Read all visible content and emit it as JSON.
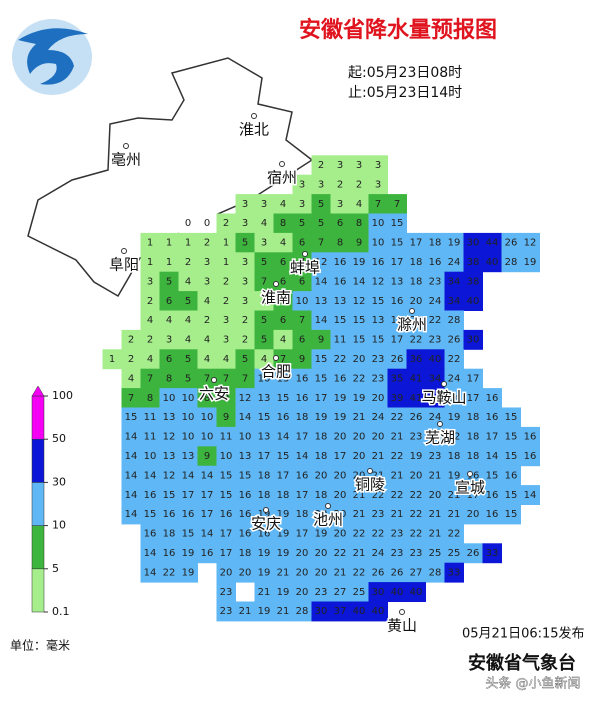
{
  "header": {
    "title": "安徽省降水量预报图",
    "start": "起:05月23日08时",
    "end": "止:05月23日14时"
  },
  "grid": {
    "rows": [
      [
        null,
        null,
        null,
        null,
        null,
        null,
        null,
        null,
        null,
        null,
        null,
        2,
        3,
        3,
        3,
        null,
        null,
        null,
        null,
        null,
        null,
        null,
        null,
        null
      ],
      [
        null,
        null,
        null,
        null,
        null,
        null,
        null,
        null,
        null,
        null,
        3,
        3,
        2,
        2,
        3,
        null,
        null,
        null,
        null,
        null,
        null,
        null,
        null,
        null
      ],
      [
        null,
        null,
        null,
        null,
        null,
        null,
        null,
        3,
        3,
        4,
        3,
        5,
        3,
        4,
        7,
        7,
        null,
        null,
        null,
        null,
        null,
        null,
        null,
        null
      ],
      [
        null,
        null,
        null,
        null,
        0,
        0,
        2,
        3,
        4,
        8,
        5,
        5,
        6,
        8,
        10,
        15,
        null,
        null,
        null,
        null,
        null,
        null,
        null,
        null
      ],
      [
        null,
        null,
        1,
        1,
        1,
        2,
        1,
        5,
        3,
        4,
        6,
        7,
        8,
        9,
        10,
        15,
        17,
        18,
        19,
        30,
        44,
        26,
        12,
        null
      ],
      [
        null,
        null,
        1,
        1,
        2,
        3,
        1,
        3,
        5,
        6,
        7,
        12,
        16,
        19,
        16,
        17,
        18,
        16,
        24,
        38,
        40,
        28,
        19,
        null
      ],
      [
        null,
        null,
        3,
        5,
        4,
        3,
        2,
        3,
        7,
        6,
        6,
        14,
        16,
        14,
        12,
        13,
        18,
        23,
        34,
        38,
        null,
        null,
        null,
        null
      ],
      [
        null,
        null,
        2,
        6,
        5,
        4,
        2,
        3,
        4,
        5,
        10,
        13,
        13,
        12,
        15,
        16,
        20,
        24,
        34,
        40,
        null,
        null,
        null,
        null
      ],
      [
        null,
        null,
        4,
        4,
        4,
        2,
        3,
        2,
        5,
        6,
        7,
        14,
        15,
        15,
        13,
        17,
        20,
        22,
        28,
        null,
        null,
        null,
        null,
        null
      ],
      [
        null,
        2,
        2,
        3,
        4,
        4,
        3,
        2,
        5,
        4,
        6,
        9,
        11,
        15,
        15,
        17,
        22,
        23,
        26,
        30,
        null,
        null,
        null,
        null
      ],
      [
        1,
        2,
        4,
        6,
        5,
        4,
        4,
        5,
        4,
        7,
        9,
        15,
        22,
        20,
        23,
        26,
        36,
        40,
        22,
        null,
        null,
        null,
        null,
        null
      ],
      [
        null,
        4,
        7,
        8,
        5,
        7,
        7,
        7,
        10,
        13,
        16,
        15,
        16,
        22,
        23,
        35,
        41,
        34,
        24,
        17,
        null,
        null,
        null,
        null
      ],
      [
        null,
        7,
        8,
        10,
        10,
        8,
        9,
        12,
        13,
        15,
        16,
        17,
        19,
        19,
        20,
        39,
        41,
        34,
        24,
        17,
        16,
        null,
        null,
        null
      ],
      [
        null,
        15,
        11,
        13,
        10,
        10,
        9,
        14,
        15,
        16,
        18,
        19,
        19,
        21,
        24,
        22,
        26,
        24,
        19,
        18,
        16,
        15,
        null,
        null
      ],
      [
        null,
        14,
        11,
        12,
        10,
        10,
        11,
        10,
        13,
        14,
        17,
        18,
        20,
        20,
        20,
        21,
        23,
        22,
        22,
        18,
        17,
        15,
        16,
        null
      ],
      [
        null,
        14,
        10,
        13,
        13,
        9,
        10,
        13,
        17,
        15,
        14,
        18,
        17,
        20,
        21,
        22,
        19,
        23,
        18,
        18,
        14,
        15,
        16,
        null
      ],
      [
        null,
        14,
        14,
        12,
        14,
        14,
        15,
        15,
        18,
        17,
        16,
        20,
        20,
        20,
        21,
        21,
        20,
        21,
        19,
        16,
        15,
        16,
        null,
        null
      ],
      [
        null,
        14,
        16,
        15,
        17,
        17,
        15,
        16,
        18,
        18,
        17,
        18,
        20,
        21,
        22,
        22,
        22,
        20,
        21,
        17,
        16,
        15,
        14,
        null
      ],
      [
        null,
        14,
        15,
        16,
        16,
        17,
        16,
        16,
        19,
        19,
        18,
        20,
        20,
        21,
        23,
        21,
        22,
        21,
        21,
        20,
        16,
        15,
        null,
        null
      ],
      [
        null,
        null,
        16,
        18,
        15,
        14,
        17,
        16,
        16,
        19,
        17,
        19,
        20,
        22,
        22,
        23,
        22,
        21,
        22,
        null,
        null,
        null,
        null,
        null
      ],
      [
        null,
        null,
        14,
        16,
        19,
        16,
        17,
        18,
        19,
        19,
        20,
        20,
        22,
        21,
        24,
        23,
        23,
        25,
        25,
        26,
        33,
        null,
        null,
        null
      ],
      [
        null,
        null,
        14,
        22,
        19,
        null,
        20,
        20,
        19,
        21,
        20,
        20,
        21,
        22,
        26,
        26,
        27,
        28,
        33,
        null,
        null,
        null,
        null,
        null
      ],
      [
        null,
        null,
        null,
        null,
        null,
        null,
        23,
        null,
        21,
        19,
        20,
        23,
        27,
        25,
        30,
        40,
        40,
        null,
        null,
        null,
        null,
        null,
        null,
        null
      ],
      [
        null,
        null,
        null,
        null,
        null,
        null,
        23,
        21,
        19,
        21,
        28,
        30,
        37,
        40,
        40,
        null,
        null,
        null,
        null,
        null,
        null,
        null,
        null,
        null
      ]
    ]
  },
  "cities": [
    "淮北",
    "亳州",
    "宿州",
    "阜阳",
    "蚌埠",
    "淮南",
    "滁州",
    "六安",
    "合肥",
    "马鞍山",
    "芜湖",
    "宣城",
    "铜陵",
    "池州",
    "安庆",
    "黄山"
  ],
  "legend": {
    "levels": [
      0.1,
      5,
      10,
      30,
      50,
      100
    ],
    "colors": [
      "#a6ee8c",
      "#3db43d",
      "#5fb7f5",
      "#0b16d6",
      "#f500f5"
    ],
    "unit": "单位：毫米"
  },
  "footer": {
    "issued": "05月21日06:15发布",
    "agency": "安徽省气象台",
    "watermark": "头条 @小鱼新闻"
  }
}
